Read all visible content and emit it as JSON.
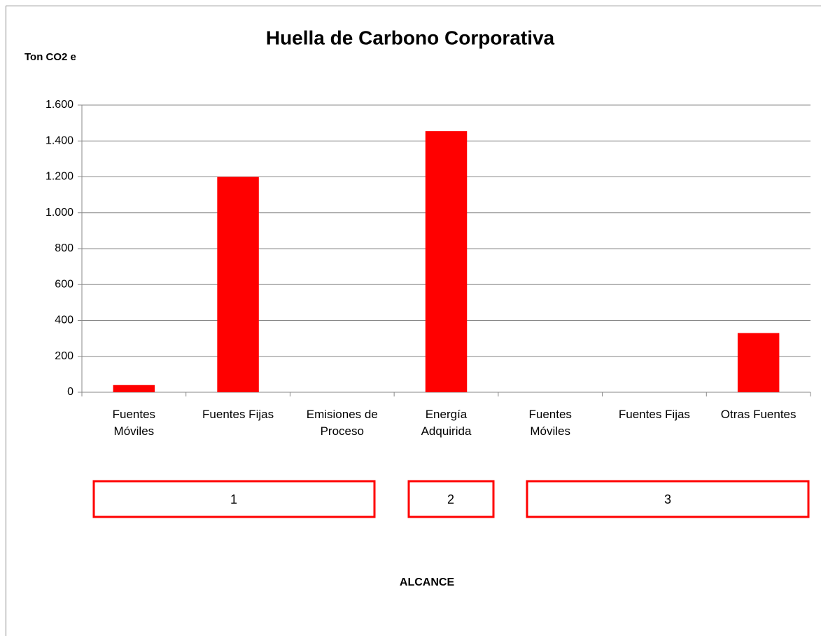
{
  "chart_data": {
    "type": "bar",
    "title": "Huella de Carbono Corporativa",
    "y_axis_label": "Ton CO2 e",
    "x_axis_label": "ALCANCE",
    "categories": [
      "Fuentes Móviles",
      "Fuentes Fijas",
      "Emisiones de Proceso",
      "Energía Adquirida",
      "Fuentes Móviles",
      "Fuentes Fijas",
      "Otras Fuentes"
    ],
    "values": [
      40,
      1200,
      0,
      1455,
      0,
      0,
      330
    ],
    "color": "#ff0000",
    "ylim": [
      0,
      1600
    ],
    "yticks": [
      0,
      200,
      400,
      600,
      800,
      {
        "value": 1000,
        "label": "1.000"
      },
      {
        "value": 1200,
        "label": "1.200"
      },
      {
        "value": 1400,
        "label": "1.400"
      },
      {
        "value": 1600,
        "label": "1.600"
      }
    ],
    "grid": true,
    "groups": [
      "1",
      "2",
      "3"
    ]
  }
}
